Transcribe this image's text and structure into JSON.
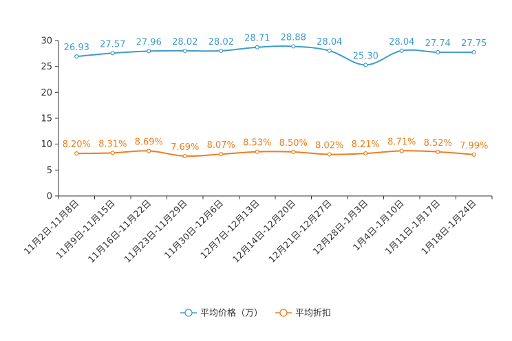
{
  "chart_data": {
    "type": "line",
    "title": "",
    "xlabel": "",
    "ylabel": "",
    "ylim": [
      0,
      30
    ],
    "yticks": [
      0,
      5,
      10,
      15,
      20,
      25,
      30
    ],
    "grid": false,
    "legend_position": "bottom",
    "categories": [
      "11月2日-11月8日",
      "11月9日-11月15日",
      "11月16日-11月22日",
      "11月23日-11月29日",
      "11月30日-12月6日",
      "12月7日-12月13日",
      "12月14日-12月20日",
      "12月21日-12月27日",
      "12月28日-1月3日",
      "1月4日-1月10日",
      "1月11日-1月17日",
      "1月18日-1月24日"
    ],
    "series": [
      {
        "name": "平均价格（万）",
        "color": "#3d9ccb",
        "values": [
          26.93,
          27.57,
          27.96,
          28.02,
          28.02,
          28.71,
          28.88,
          28.04,
          25.3,
          28.04,
          27.74,
          27.75
        ],
        "labels": [
          "26.93",
          "27.57",
          "27.96",
          "28.02",
          "28.02",
          "28.71",
          "28.88",
          "28.04",
          "25.30",
          "28.04",
          "27.74",
          "27.75"
        ]
      },
      {
        "name": "平均折扣",
        "color": "#f07d1a",
        "values": [
          8.2,
          8.31,
          8.69,
          7.69,
          8.07,
          8.53,
          8.5,
          8.02,
          8.21,
          8.71,
          8.52,
          7.99
        ],
        "labels": [
          "8.20%",
          "8.31%",
          "8.69%",
          "7.69%",
          "8.07%",
          "8.53%",
          "8.50%",
          "8.02%",
          "8.21%",
          "8.71%",
          "8.52%",
          "7.99%"
        ]
      }
    ]
  }
}
